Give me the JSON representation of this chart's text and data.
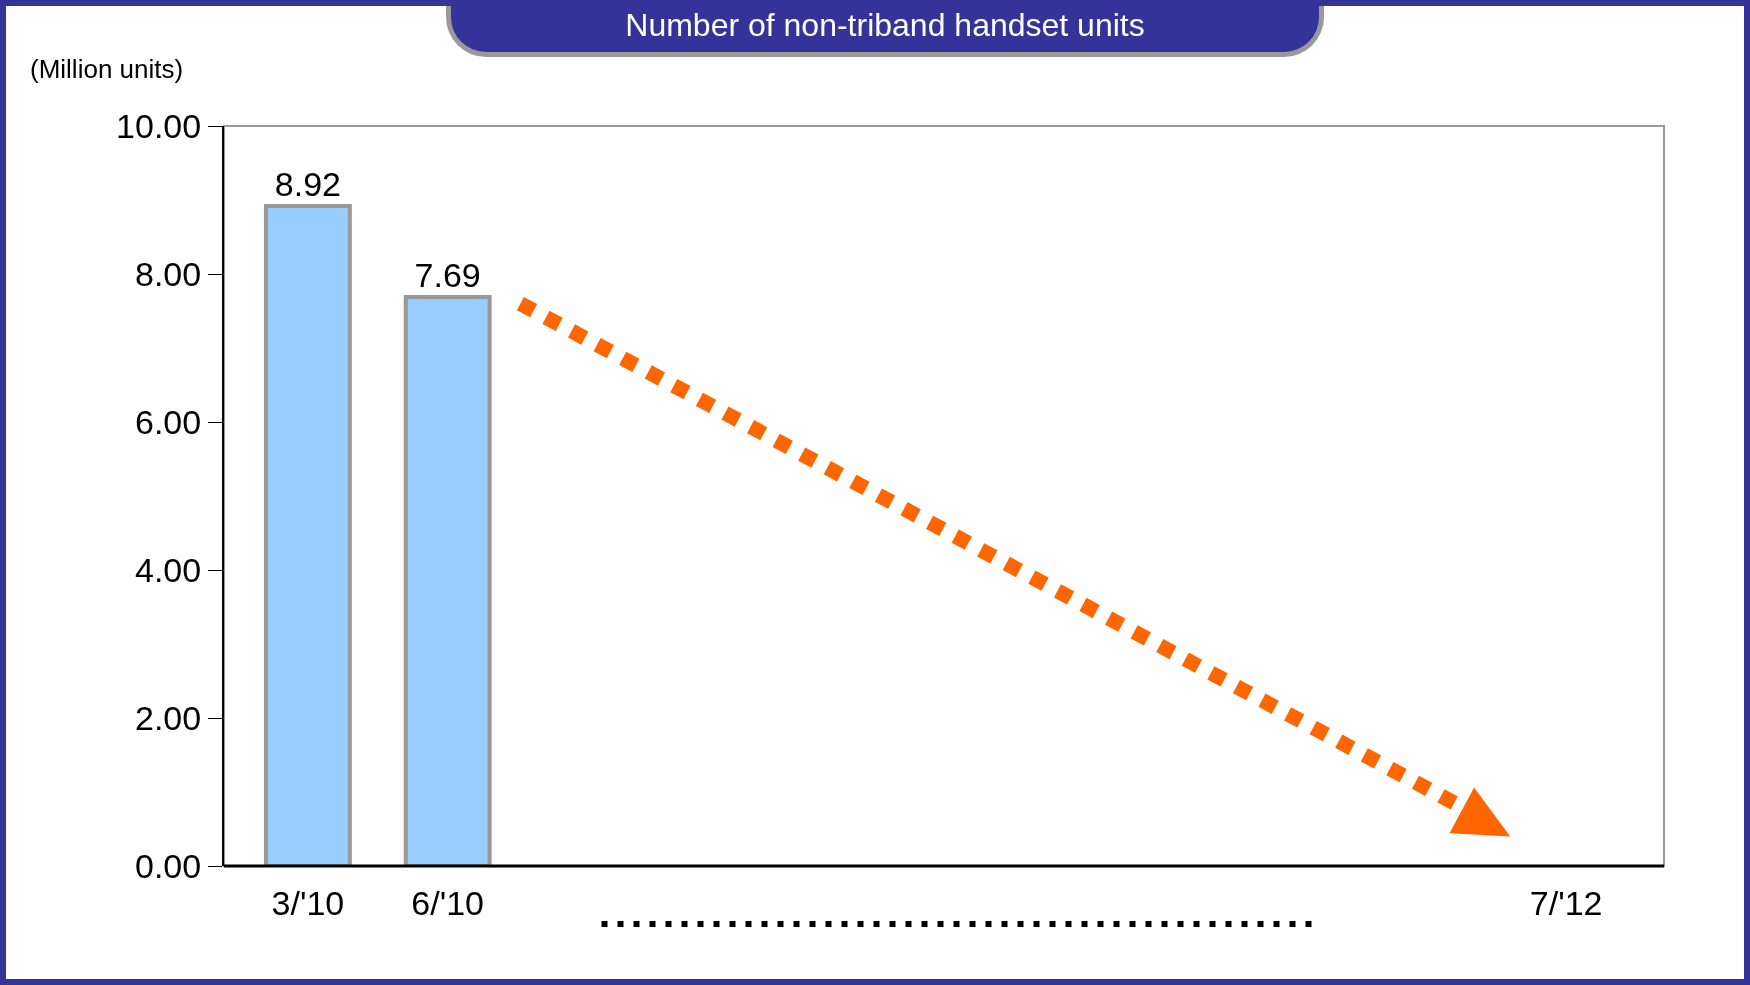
{
  "chart_data": {
    "type": "bar",
    "title": "Number of non-triband handset units",
    "ylabel": "(Million units)",
    "categories": [
      "3/'10",
      "6/'10",
      null,
      null,
      null,
      null,
      null,
      null,
      null,
      "7/'12"
    ],
    "series": [
      {
        "color": "#99ccff",
        "values": [
          8.92,
          7.69,
          null,
          null,
          null,
          null,
          null,
          null,
          null,
          null
        ]
      }
    ],
    "ylim": [
      0,
      10
    ],
    "yticks": [
      {
        "value": 0,
        "label": "0.00"
      },
      {
        "value": 2,
        "label": "2.00"
      },
      {
        "value": 4,
        "label": "4.00"
      },
      {
        "value": 6,
        "label": "6.00"
      },
      {
        "value": 8,
        "label": "8.00"
      },
      {
        "value": 10,
        "label": "10.00"
      }
    ],
    "data_labels": true
  }
}
